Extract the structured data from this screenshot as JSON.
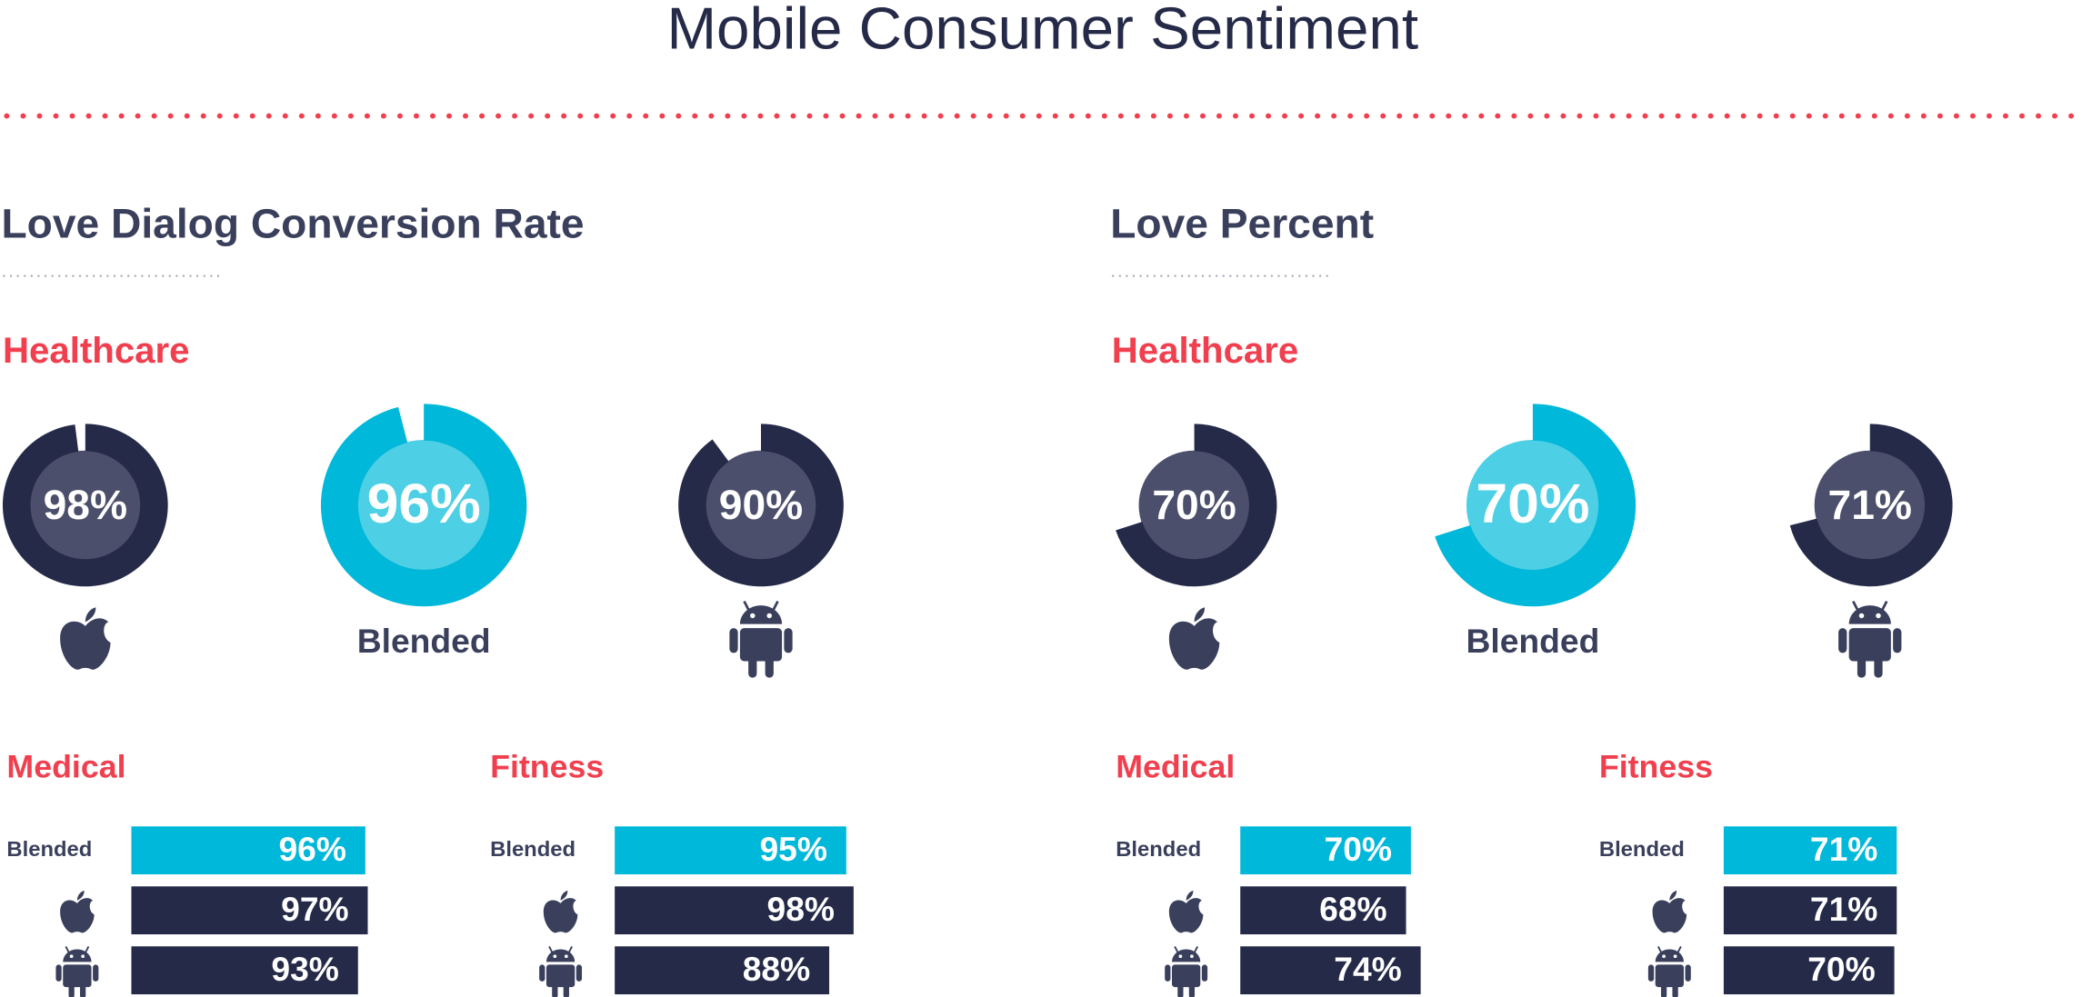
{
  "title": "Mobile Consumer Sentiment",
  "sections": [
    {
      "heading": "Love Dialog Conversion Rate",
      "chart_data": [
        {
          "type": "donut",
          "title": "Healthcare",
          "categories": [
            null,
            "Blended",
            null
          ],
          "values": [
            98,
            96,
            90
          ],
          "value_labels": [
            "98%",
            "96%",
            "90%"
          ],
          "colors": [
            "#252a48",
            "#00b8d9",
            "#252a48"
          ],
          "inner_colors": [
            "#4b4f6b",
            "#4dcfe5",
            "#4b4f6b"
          ],
          "range": [
            0,
            100
          ]
        },
        {
          "type": "bar",
          "title": "Medical",
          "categories": [
            "Blended",
            null,
            null
          ],
          "values": [
            96,
            97,
            93
          ],
          "value_labels": [
            "96%",
            "97%",
            "93%"
          ],
          "colors": [
            "#00b8d9",
            "#252a48",
            "#252a48"
          ],
          "xlim": [
            0,
            100
          ]
        },
        {
          "type": "bar",
          "title": "Fitness",
          "categories": [
            "Blended",
            null,
            null
          ],
          "values": [
            95,
            98,
            88
          ],
          "value_labels": [
            "95%",
            "98%",
            "88%"
          ],
          "colors": [
            "#00b8d9",
            "#252a48",
            "#252a48"
          ],
          "xlim": [
            0,
            100
          ]
        }
      ]
    },
    {
      "heading": "Love Percent",
      "chart_data": [
        {
          "type": "donut",
          "title": "Healthcare",
          "categories": [
            null,
            "Blended",
            null
          ],
          "values": [
            70,
            70,
            71
          ],
          "value_labels": [
            "70%",
            "70%",
            "71%"
          ],
          "colors": [
            "#252a48",
            "#00b8d9",
            "#252a48"
          ],
          "inner_colors": [
            "#4b4f6b",
            "#4dcfe5",
            "#4b4f6b"
          ],
          "range": [
            0,
            100
          ]
        },
        {
          "type": "bar",
          "title": "Medical",
          "categories": [
            "Blended",
            null,
            null
          ],
          "values": [
            70,
            68,
            74
          ],
          "value_labels": [
            "70%",
            "68%",
            "74%"
          ],
          "colors": [
            "#00b8d9",
            "#252a48",
            "#252a48"
          ],
          "xlim": [
            0,
            100
          ]
        },
        {
          "type": "bar",
          "title": "Fitness",
          "categories": [
            "Blended",
            null,
            null
          ],
          "values": [
            71,
            71,
            70
          ],
          "value_labels": [
            "71%",
            "71%",
            "70%"
          ],
          "colors": [
            "#00b8d9",
            "#252a48",
            "#252a48"
          ],
          "xlim": [
            0,
            100
          ]
        }
      ]
    }
  ]
}
